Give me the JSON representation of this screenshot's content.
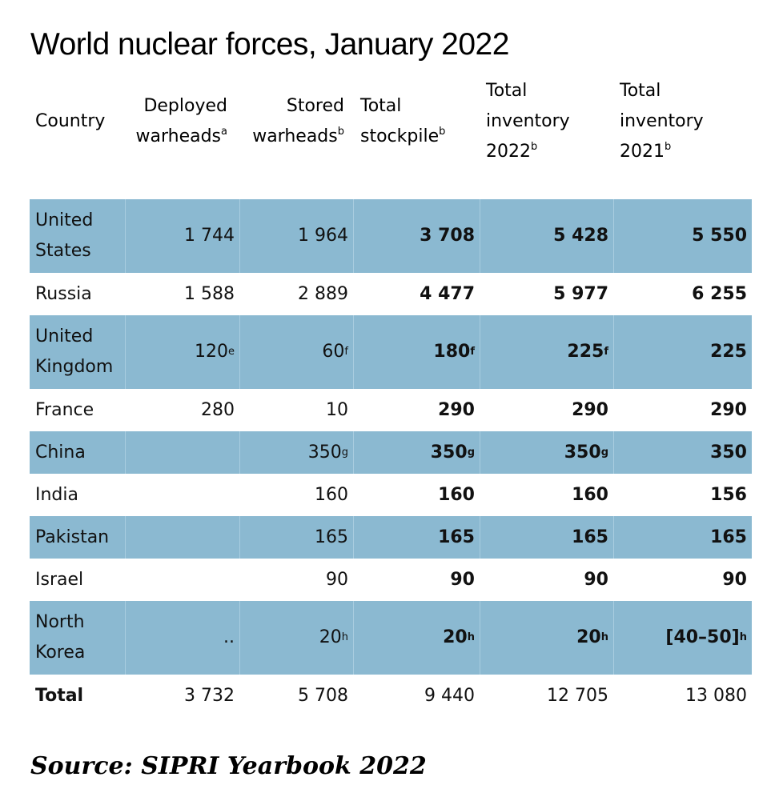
{
  "title": "World nuclear forces, January 2022",
  "source_label": "Source",
  "source_text": "SIPRI Yearbook 2022",
  "colors": {
    "row_shade": "#8bb9d1",
    "text": "#111111"
  },
  "chart_data": {
    "type": "table",
    "title": "World nuclear forces, January 2022",
    "columns": [
      {
        "lines": [
          "Country"
        ],
        "note": ""
      },
      {
        "lines": [
          "Deployed",
          "warheads"
        ],
        "note": "a"
      },
      {
        "lines": [
          "Stored",
          "warheads"
        ],
        "note": "b"
      },
      {
        "lines": [
          "Total",
          "stockpile"
        ],
        "note": "b"
      },
      {
        "lines": [
          "Total",
          "inventory",
          "2022"
        ],
        "note": "b"
      },
      {
        "lines": [
          "Total",
          "inventory",
          "2021"
        ],
        "note": "b"
      }
    ],
    "rows": [
      {
        "country": "United States",
        "cells": [
          {
            "v": "1 744",
            "n": ""
          },
          {
            "v": "1 964",
            "n": ""
          },
          {
            "v": "3 708",
            "n": ""
          },
          {
            "v": "5 428",
            "n": ""
          },
          {
            "v": "5 550",
            "n": ""
          }
        ]
      },
      {
        "country": "Russia",
        "cells": [
          {
            "v": "1 588",
            "n": ""
          },
          {
            "v": "2 889",
            "n": ""
          },
          {
            "v": "4 477",
            "n": ""
          },
          {
            "v": "5 977",
            "n": ""
          },
          {
            "v": "6 255",
            "n": ""
          }
        ]
      },
      {
        "country": "United Kingdom",
        "cells": [
          {
            "v": "120",
            "n": "e"
          },
          {
            "v": "60",
            "n": "f"
          },
          {
            "v": "180",
            "n": "f"
          },
          {
            "v": "225",
            "n": "f"
          },
          {
            "v": "225",
            "n": ""
          }
        ]
      },
      {
        "country": "France",
        "cells": [
          {
            "v": "280",
            "n": ""
          },
          {
            "v": "10",
            "n": ""
          },
          {
            "v": "290",
            "n": ""
          },
          {
            "v": "290",
            "n": ""
          },
          {
            "v": "290",
            "n": ""
          }
        ]
      },
      {
        "country": "China",
        "cells": [
          {
            "v": "",
            "n": ""
          },
          {
            "v": "350",
            "n": "g"
          },
          {
            "v": "350",
            "n": "g"
          },
          {
            "v": "350",
            "n": "g"
          },
          {
            "v": "350",
            "n": ""
          }
        ]
      },
      {
        "country": "India",
        "cells": [
          {
            "v": "",
            "n": ""
          },
          {
            "v": "160",
            "n": ""
          },
          {
            "v": "160",
            "n": ""
          },
          {
            "v": "160",
            "n": ""
          },
          {
            "v": "156",
            "n": ""
          }
        ]
      },
      {
        "country": "Pakistan",
        "cells": [
          {
            "v": "",
            "n": ""
          },
          {
            "v": "165",
            "n": ""
          },
          {
            "v": "165",
            "n": ""
          },
          {
            "v": "165",
            "n": ""
          },
          {
            "v": "165",
            "n": ""
          }
        ]
      },
      {
        "country": "Israel",
        "cells": [
          {
            "v": "",
            "n": ""
          },
          {
            "v": "90",
            "n": ""
          },
          {
            "v": "90",
            "n": ""
          },
          {
            "v": "90",
            "n": ""
          },
          {
            "v": "90",
            "n": ""
          }
        ]
      },
      {
        "country": "North Korea",
        "cells": [
          {
            "v": "..",
            "n": ""
          },
          {
            "v": "20",
            "n": "h"
          },
          {
            "v": "20",
            "n": "h"
          },
          {
            "v": "20",
            "n": "h"
          },
          {
            "v": "[40–50]",
            "n": "h"
          }
        ]
      }
    ],
    "total": {
      "label": "Total",
      "cells": [
        "3 732",
        "5 708",
        "9 440",
        "12 705",
        "13 080"
      ]
    }
  }
}
